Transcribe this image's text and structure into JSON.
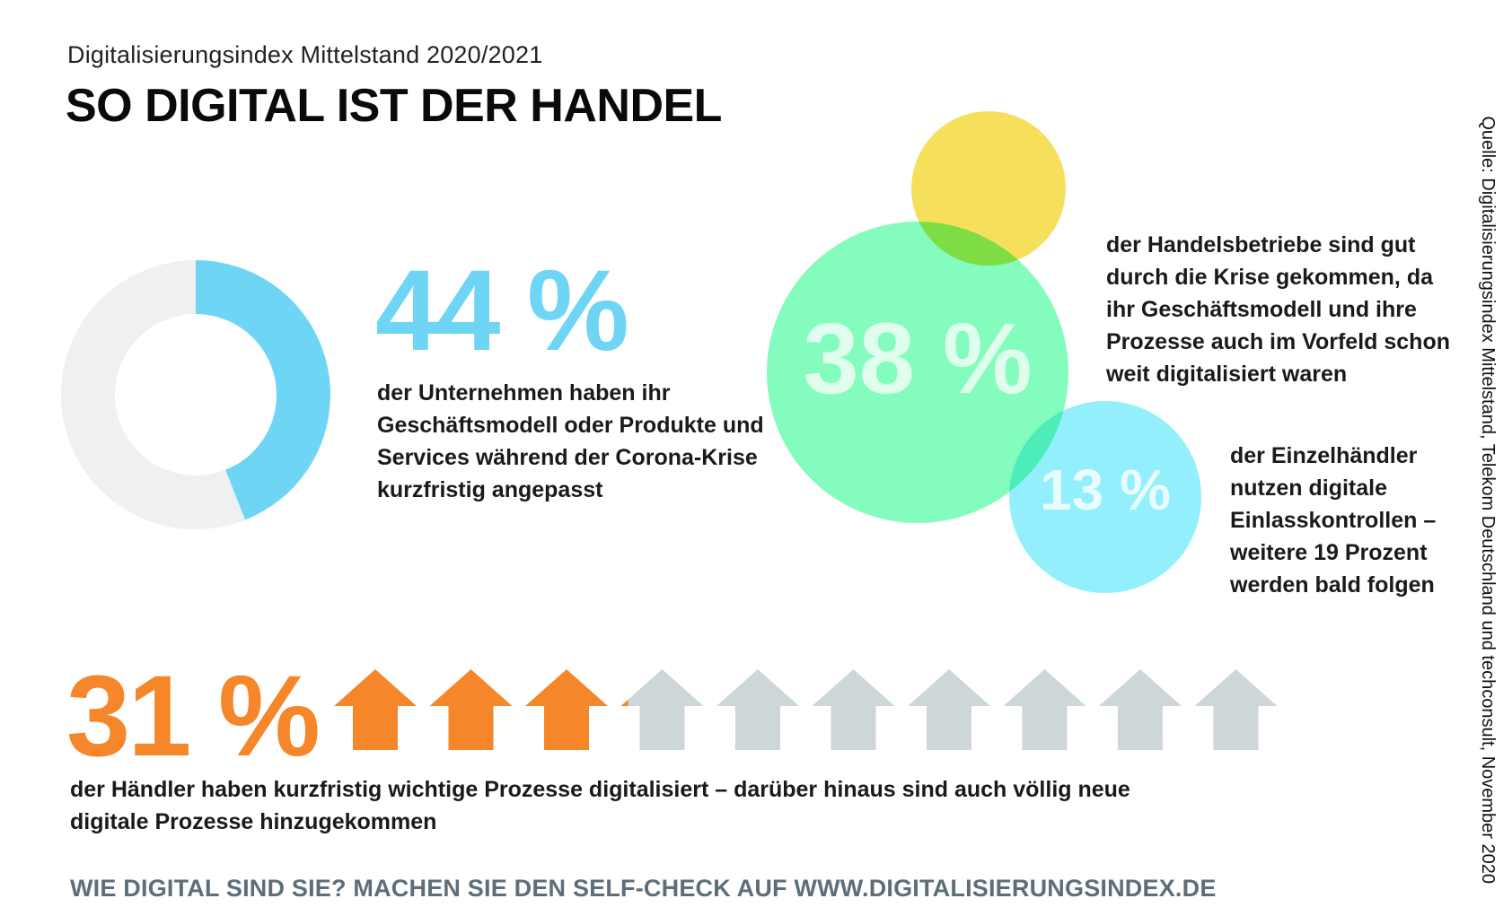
{
  "header": {
    "subtitle": "Digitalisierungsindex Mittelstand 2020/2021",
    "title": "SO DIGITAL IST DER HANDEL"
  },
  "chart_data": [
    {
      "type": "pie",
      "variant": "donut",
      "values": [
        44,
        56
      ],
      "value_label": "44 %",
      "description": "der Unternehmen haben ihr Geschäftsmodell oder Produkte und Services während der Corona-Krise kurzfristig angepasst",
      "colors": [
        "#6fd5f5",
        "#eef0f1"
      ]
    },
    {
      "type": "bubble",
      "values": [
        38,
        13
      ],
      "value_labels": [
        "38 %",
        "13 %"
      ],
      "descriptions": [
        "der Handelsbetriebe sind gut durch die Krise gekommen, da ihr Geschäftsmodell und ihre Prozesse auch im Vorfeld schon weit digitalisiert waren",
        "der Einzelhändler nutzen digitale Einlasskontrollen – weitere 19 Prozent werden bald folgen"
      ],
      "colors": [
        "#6dfbb2",
        "#80ecfb",
        "#f5d93e"
      ]
    },
    {
      "type": "pictogram",
      "value": 31,
      "value_label": "31 %",
      "total_icons": 10,
      "description": "der Händler haben kurzfristig wichtige Prozesse digitalisiert – darüber hinaus sind auch völlig neue digitale Prozesse hinzugekommen",
      "colors": [
        "#f5862a",
        "#cdd6d8"
      ]
    }
  ],
  "footer": "WIE DIGITAL SIND SIE? MACHEN SIE DEN SELF-CHECK AUF WWW.DIGITALISIERUNGSINDEX.DE",
  "source": "Quelle: Digitalisierungsindex Mittelstand, Telekom Deutschland und techconsult, November 2020"
}
